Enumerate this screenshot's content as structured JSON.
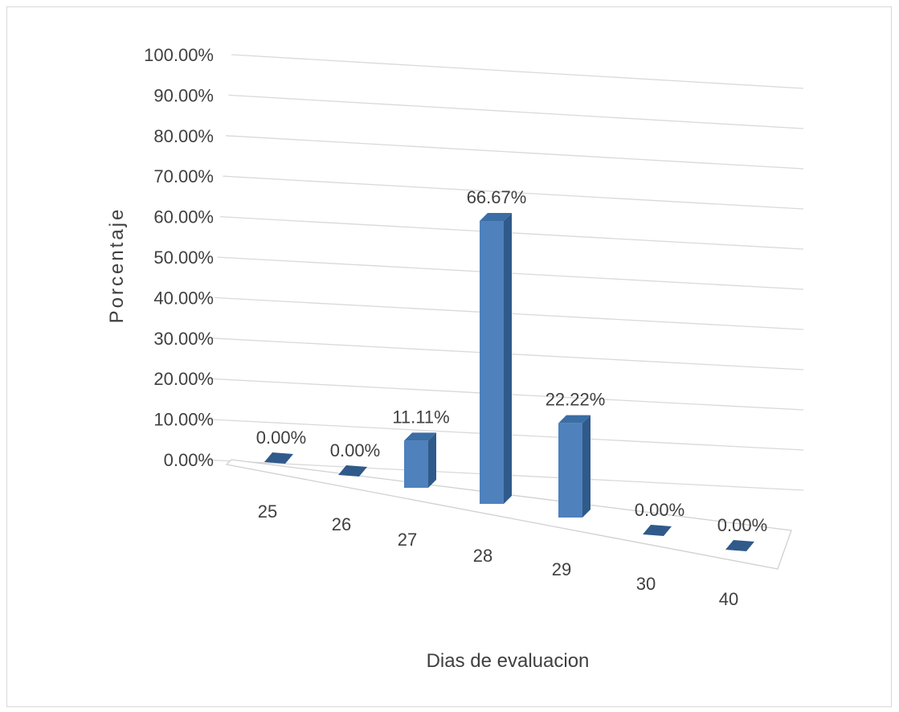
{
  "chart_data": {
    "type": "bar",
    "style": "3d-column",
    "categories": [
      "25",
      "26",
      "27",
      "28",
      "29",
      "30",
      "40"
    ],
    "values": [
      0.0,
      0.0,
      11.11,
      66.67,
      22.22,
      0.0,
      0.0
    ],
    "data_labels": [
      "0.00%",
      "0.00%",
      "11.11%",
      "66.67%",
      "22.22%",
      "0.00%",
      "0.00%"
    ],
    "xlabel": "Dias de evaluacion",
    "ylabel": "Porcentaje",
    "ylim": [
      0,
      100
    ],
    "yticks": [
      "0.00%",
      "10.00%",
      "20.00%",
      "30.00%",
      "40.00%",
      "50.00%",
      "60.00%",
      "70.00%",
      "80.00%",
      "90.00%",
      "100.00%"
    ],
    "grid": true,
    "legend": "none",
    "colors": {
      "bar_front": "#4f81bd",
      "bar_side": "#2f5a8a",
      "bar_top": "#3a6ea5",
      "grid": "#d9d9d9",
      "text": "#404040"
    }
  }
}
